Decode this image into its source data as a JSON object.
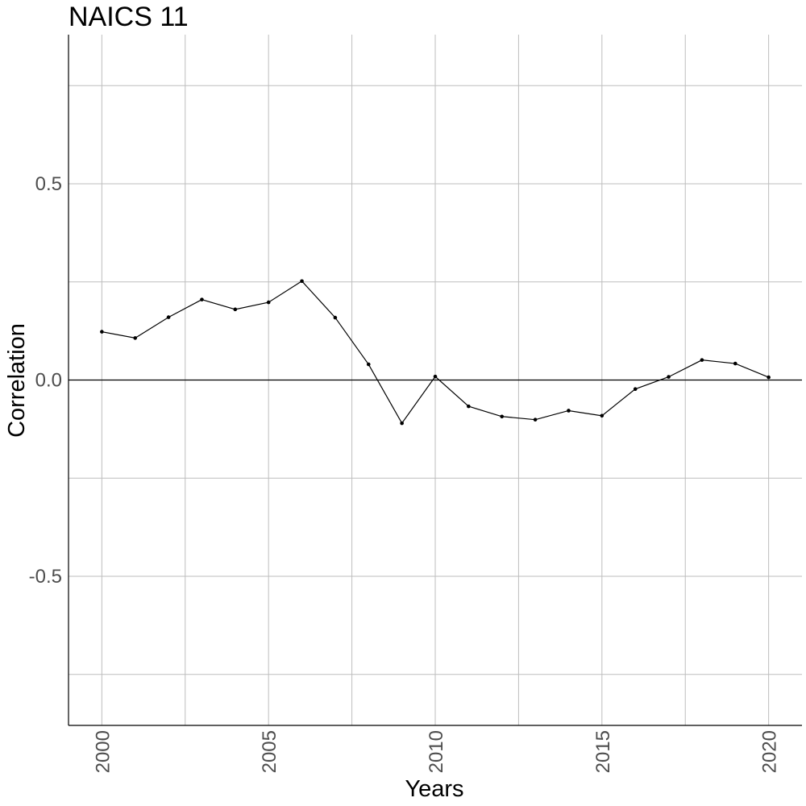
{
  "chart_data": {
    "type": "line",
    "title": "NAICS 11",
    "xlabel": "Years",
    "ylabel": "Correlation",
    "xlim": [
      1999,
      2021
    ],
    "ylim": [
      -0.88,
      0.88
    ],
    "x_ticks": [
      2000,
      2005,
      2010,
      2015,
      2020
    ],
    "x_tick_labels": [
      "2000",
      "2005",
      "2010",
      "2015",
      "2020"
    ],
    "y_ticks": [
      -0.5,
      0.0,
      0.5
    ],
    "y_tick_labels": [
      "-0.5",
      "0.0",
      "0.5"
    ],
    "grid": true,
    "reference_line_y": 0,
    "series": [
      {
        "x": [
          2000,
          2001,
          2002,
          2003,
          2004,
          2005,
          2006,
          2007,
          2008,
          2009,
          2010,
          2011,
          2012,
          2013,
          2014,
          2015,
          2016,
          2017,
          2018,
          2019,
          2020
        ],
        "values": [
          0.123,
          0.107,
          0.16,
          0.205,
          0.18,
          0.198,
          0.252,
          0.159,
          0.04,
          -0.11,
          0.009,
          -0.067,
          -0.093,
          -0.101,
          -0.078,
          -0.091,
          -0.023,
          0.008,
          0.051,
          0.042,
          0.007
        ]
      }
    ]
  }
}
